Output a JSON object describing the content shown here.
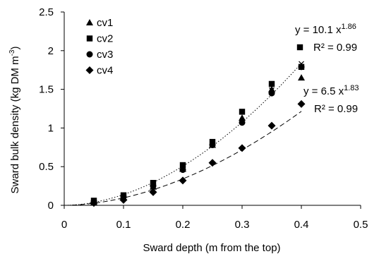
{
  "chart_data": {
    "type": "scatter",
    "xlabel": "Sward depth (m from the top)",
    "ylabel": "Sward bulk density (kg DM m",
    "ylabel_sup": "-3",
    "ylabel_close": ")",
    "xlim": [
      0,
      0.5
    ],
    "ylim": [
      0,
      2.5
    ],
    "x_ticks": [
      0,
      0.1,
      0.2,
      0.3,
      0.4,
      0.5
    ],
    "x_tick_labels": [
      "0",
      "0.1",
      "0.2",
      "0.3",
      "0.4",
      "0.5"
    ],
    "y_ticks": [
      0,
      0.5,
      1,
      1.5,
      2,
      2.5
    ],
    "y_tick_labels": [
      "0",
      "0.5",
      "1",
      "1.5",
      "2",
      "2.5"
    ],
    "grid": false,
    "legend_position": "top-left",
    "series": [
      {
        "name": "cv1",
        "marker": "triangle",
        "x": [
          0.05,
          0.1,
          0.15,
          0.2,
          0.25,
          0.3,
          0.35,
          0.4
        ],
        "y": [
          0.04,
          0.1,
          0.24,
          0.47,
          0.78,
          1.13,
          1.5,
          1.65
        ]
      },
      {
        "name": "cv2",
        "marker": "square",
        "x": [
          0.05,
          0.1,
          0.15,
          0.2,
          0.25,
          0.3,
          0.35,
          0.4
        ],
        "y": [
          0.06,
          0.13,
          0.29,
          0.52,
          0.82,
          1.21,
          1.57,
          1.79
        ]
      },
      {
        "name": "cv3",
        "marker": "circle",
        "x": [
          0.05,
          0.1,
          0.15,
          0.2,
          0.25,
          0.3,
          0.35,
          0.4
        ],
        "y": [
          0.05,
          0.11,
          0.25,
          0.46,
          0.78,
          1.07,
          1.45,
          1.79
        ]
      },
      {
        "name": "cv4",
        "marker": "diamond",
        "x": [
          0.05,
          0.1,
          0.15,
          0.2,
          0.25,
          0.3,
          0.35,
          0.4
        ],
        "y": [
          0.03,
          0.07,
          0.17,
          0.32,
          0.55,
          0.74,
          1.03,
          1.31
        ]
      }
    ],
    "cross_markers": {
      "x": [
        0.35,
        0.4
      ],
      "y": [
        1.49,
        1.83
      ]
    },
    "fits": [
      {
        "style": "dotted",
        "coef": 10.1,
        "exp": 1.86,
        "equation_base": "y = 10.1 x",
        "equation_exp": "1.86",
        "r2_text": "R² = 0.99"
      },
      {
        "style": "dashed",
        "coef": 6.5,
        "exp": 1.83,
        "equation_base": "y = 6.5 x",
        "equation_exp": "1.83",
        "r2_text": "R² = 0.99"
      }
    ]
  }
}
